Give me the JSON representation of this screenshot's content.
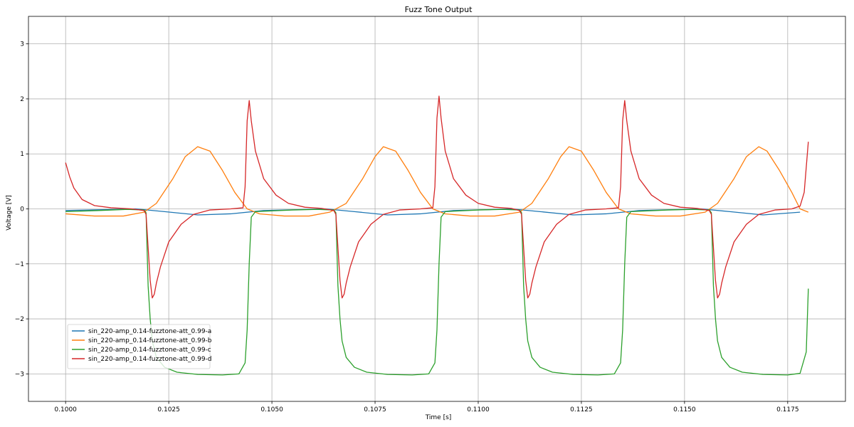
{
  "chart_data": {
    "type": "line",
    "title": "Fuzz Tone Output",
    "xlabel": "Time [s]",
    "ylabel": "Voltage [V]",
    "xlim": [
      0.0991,
      0.1189
    ],
    "ylim": [
      -3.5,
      3.5
    ],
    "grid": true,
    "legend_position": "lower-left",
    "x_ticks": [
      0.1,
      0.1025,
      0.105,
      0.1075,
      0.11,
      0.1125,
      0.115,
      0.1175
    ],
    "x_tick_labels": [
      "0.1000",
      "0.1025",
      "0.1050",
      "0.1075",
      "0.1100",
      "0.1125",
      "0.1150",
      "0.1175"
    ],
    "y_ticks": [
      -3,
      -2,
      -1,
      0,
      1,
      2,
      3
    ],
    "y_tick_labels": [
      "−3",
      "−2",
      "−1",
      "0",
      "1",
      "2",
      "3"
    ],
    "series": [
      {
        "name": "sin_220-amp_0.14-fuzztone-att_0.99-a",
        "color": "#1f77b4",
        "points": [
          [
            0.1,
            -0.03
          ],
          [
            0.1009,
            -0.015
          ],
          [
            0.1017,
            0.0
          ],
          [
            0.1024,
            -0.05
          ],
          [
            0.1032,
            -0.11
          ],
          [
            0.104,
            -0.09
          ],
          [
            0.1048,
            -0.03
          ],
          [
            0.1056,
            -0.015
          ],
          [
            0.1063,
            0.0
          ],
          [
            0.107,
            -0.05
          ],
          [
            0.1078,
            -0.11
          ],
          [
            0.1086,
            -0.09
          ],
          [
            0.1094,
            -0.03
          ],
          [
            0.1102,
            -0.015
          ],
          [
            0.1108,
            0.0
          ],
          [
            0.1115,
            -0.05
          ],
          [
            0.1123,
            -0.11
          ],
          [
            0.1131,
            -0.09
          ],
          [
            0.1139,
            -0.03
          ],
          [
            0.1147,
            -0.015
          ],
          [
            0.1154,
            0.0
          ],
          [
            0.1161,
            -0.05
          ],
          [
            0.1169,
            -0.11
          ],
          [
            0.1178,
            -0.06
          ]
        ]
      },
      {
        "name": "sin_220-amp_0.14-fuzztone-att_0.99-b",
        "color": "#ff7f0e",
        "points": [
          [
            0.1,
            -0.09
          ],
          [
            0.1007,
            -0.13
          ],
          [
            0.1014,
            -0.13
          ],
          [
            0.1019,
            -0.06
          ],
          [
            0.1022,
            0.1
          ],
          [
            0.1026,
            0.55
          ],
          [
            0.1029,
            0.95
          ],
          [
            0.1032,
            1.13
          ],
          [
            0.1035,
            1.05
          ],
          [
            0.1038,
            0.7
          ],
          [
            0.1041,
            0.3
          ],
          [
            0.1044,
            0.0
          ],
          [
            0.1047,
            -0.09
          ],
          [
            0.1053,
            -0.13
          ],
          [
            0.1059,
            -0.13
          ],
          [
            0.1064,
            -0.06
          ],
          [
            0.1068,
            0.1
          ],
          [
            0.1072,
            0.55
          ],
          [
            0.1075,
            0.95
          ],
          [
            0.1077,
            1.13
          ],
          [
            0.108,
            1.05
          ],
          [
            0.1083,
            0.7
          ],
          [
            0.1086,
            0.3
          ],
          [
            0.1089,
            0.0
          ],
          [
            0.1092,
            -0.09
          ],
          [
            0.1098,
            -0.13
          ],
          [
            0.1104,
            -0.13
          ],
          [
            0.111,
            -0.06
          ],
          [
            0.1113,
            0.1
          ],
          [
            0.1117,
            0.55
          ],
          [
            0.112,
            0.95
          ],
          [
            0.1122,
            1.13
          ],
          [
            0.1125,
            1.05
          ],
          [
            0.1128,
            0.7
          ],
          [
            0.1131,
            0.3
          ],
          [
            0.1134,
            0.0
          ],
          [
            0.1137,
            -0.09
          ],
          [
            0.1143,
            -0.13
          ],
          [
            0.1149,
            -0.13
          ],
          [
            0.1155,
            -0.06
          ],
          [
            0.1158,
            0.1
          ],
          [
            0.1162,
            0.55
          ],
          [
            0.1165,
            0.95
          ],
          [
            0.1168,
            1.13
          ],
          [
            0.117,
            1.05
          ],
          [
            0.1173,
            0.7
          ],
          [
            0.1176,
            0.3
          ],
          [
            0.1178,
            0.0
          ],
          [
            0.118,
            -0.06
          ]
        ]
      },
      {
        "name": "sin_220-amp_0.14-fuzztone-att_0.99-c",
        "color": "#2ca02c",
        "points": [
          [
            0.1,
            -0.05
          ],
          [
            0.1008,
            -0.03
          ],
          [
            0.1015,
            -0.01
          ],
          [
            0.1019,
            -0.02
          ],
          [
            0.10195,
            -0.07
          ],
          [
            0.102,
            -1.4
          ],
          [
            0.10205,
            -2.0
          ],
          [
            0.1021,
            -2.4
          ],
          [
            0.1022,
            -2.7
          ],
          [
            0.1024,
            -2.88
          ],
          [
            0.1027,
            -2.97
          ],
          [
            0.1032,
            -3.01
          ],
          [
            0.1038,
            -3.02
          ],
          [
            0.1042,
            -3.0
          ],
          [
            0.10435,
            -2.8
          ],
          [
            0.1044,
            -2.2
          ],
          [
            0.10445,
            -1.0
          ],
          [
            0.1045,
            -0.15
          ],
          [
            0.1046,
            -0.05
          ],
          [
            0.1055,
            -0.02
          ],
          [
            0.1061,
            -0.01
          ],
          [
            0.1065,
            -0.02
          ],
          [
            0.10655,
            -0.07
          ],
          [
            0.1066,
            -1.4
          ],
          [
            0.10665,
            -2.0
          ],
          [
            0.1067,
            -2.4
          ],
          [
            0.1068,
            -2.7
          ],
          [
            0.107,
            -2.88
          ],
          [
            0.1073,
            -2.97
          ],
          [
            0.1078,
            -3.01
          ],
          [
            0.1084,
            -3.02
          ],
          [
            0.1088,
            -3.0
          ],
          [
            0.10895,
            -2.8
          ],
          [
            0.109,
            -2.2
          ],
          [
            0.10905,
            -1.0
          ],
          [
            0.1091,
            -0.15
          ],
          [
            0.1092,
            -0.05
          ],
          [
            0.11,
            -0.02
          ],
          [
            0.1106,
            -0.01
          ],
          [
            0.111,
            -0.02
          ],
          [
            0.11105,
            -0.07
          ],
          [
            0.1111,
            -1.4
          ],
          [
            0.11115,
            -2.0
          ],
          [
            0.1112,
            -2.4
          ],
          [
            0.1113,
            -2.7
          ],
          [
            0.1115,
            -2.88
          ],
          [
            0.1118,
            -2.97
          ],
          [
            0.1123,
            -3.01
          ],
          [
            0.1129,
            -3.02
          ],
          [
            0.1133,
            -3.0
          ],
          [
            0.11345,
            -2.8
          ],
          [
            0.1135,
            -2.2
          ],
          [
            0.11355,
            -1.0
          ],
          [
            0.1136,
            -0.15
          ],
          [
            0.1137,
            -0.05
          ],
          [
            0.1146,
            -0.02
          ],
          [
            0.1152,
            -0.01
          ],
          [
            0.1156,
            -0.02
          ],
          [
            0.11565,
            -0.07
          ],
          [
            0.1157,
            -1.4
          ],
          [
            0.11575,
            -2.0
          ],
          [
            0.1158,
            -2.4
          ],
          [
            0.1159,
            -2.7
          ],
          [
            0.1161,
            -2.88
          ],
          [
            0.1164,
            -2.97
          ],
          [
            0.1169,
            -3.01
          ],
          [
            0.1175,
            -3.02
          ],
          [
            0.1178,
            -2.99
          ],
          [
            0.11795,
            -2.6
          ],
          [
            0.118,
            -1.45
          ]
        ]
      },
      {
        "name": "sin_220-amp_0.14-fuzztone-att_0.99-d",
        "color": "#d62728",
        "points": [
          [
            0.1,
            0.84
          ],
          [
            0.1001,
            0.58
          ],
          [
            0.1002,
            0.38
          ],
          [
            0.1004,
            0.17
          ],
          [
            0.1007,
            0.06
          ],
          [
            0.1011,
            0.02
          ],
          [
            0.1016,
            0.0
          ],
          [
            0.1019,
            -0.03
          ],
          [
            0.10195,
            -0.1
          ],
          [
            0.102,
            -0.7
          ],
          [
            0.10205,
            -1.3
          ],
          [
            0.1021,
            -1.62
          ],
          [
            0.10215,
            -1.55
          ],
          [
            0.1022,
            -1.35
          ],
          [
            0.1023,
            -1.05
          ],
          [
            0.1025,
            -0.6
          ],
          [
            0.1028,
            -0.28
          ],
          [
            0.1031,
            -0.1
          ],
          [
            0.1035,
            -0.02
          ],
          [
            0.104,
            0.0
          ],
          [
            0.1043,
            0.02
          ],
          [
            0.10435,
            0.4
          ],
          [
            0.1044,
            1.6
          ],
          [
            0.10445,
            1.97
          ],
          [
            0.1045,
            1.6
          ],
          [
            0.1046,
            1.05
          ],
          [
            0.1048,
            0.55
          ],
          [
            0.1051,
            0.25
          ],
          [
            0.1054,
            0.1
          ],
          [
            0.1058,
            0.03
          ],
          [
            0.1062,
            0.01
          ],
          [
            0.1065,
            -0.03
          ],
          [
            0.10655,
            -0.1
          ],
          [
            0.1066,
            -0.7
          ],
          [
            0.10665,
            -1.3
          ],
          [
            0.1067,
            -1.62
          ],
          [
            0.10675,
            -1.55
          ],
          [
            0.1068,
            -1.35
          ],
          [
            0.1069,
            -1.05
          ],
          [
            0.1071,
            -0.6
          ],
          [
            0.1074,
            -0.28
          ],
          [
            0.1077,
            -0.1
          ],
          [
            0.1081,
            -0.02
          ],
          [
            0.1086,
            0.0
          ],
          [
            0.1089,
            0.02
          ],
          [
            0.10895,
            0.4
          ],
          [
            0.109,
            1.65
          ],
          [
            0.10905,
            2.05
          ],
          [
            0.1091,
            1.65
          ],
          [
            0.1092,
            1.05
          ],
          [
            0.1094,
            0.55
          ],
          [
            0.1097,
            0.25
          ],
          [
            0.11,
            0.1
          ],
          [
            0.1104,
            0.03
          ],
          [
            0.1108,
            0.01
          ],
          [
            0.111,
            -0.03
          ],
          [
            0.11105,
            -0.1
          ],
          [
            0.1111,
            -0.7
          ],
          [
            0.11115,
            -1.3
          ],
          [
            0.1112,
            -1.62
          ],
          [
            0.11125,
            -1.55
          ],
          [
            0.1113,
            -1.35
          ],
          [
            0.1114,
            -1.05
          ],
          [
            0.1116,
            -0.6
          ],
          [
            0.1119,
            -0.28
          ],
          [
            0.1122,
            -0.1
          ],
          [
            0.1126,
            -0.02
          ],
          [
            0.1131,
            0.0
          ],
          [
            0.1134,
            0.02
          ],
          [
            0.11345,
            0.4
          ],
          [
            0.1135,
            1.6
          ],
          [
            0.11355,
            1.97
          ],
          [
            0.1136,
            1.6
          ],
          [
            0.1137,
            1.05
          ],
          [
            0.1139,
            0.55
          ],
          [
            0.1142,
            0.25
          ],
          [
            0.1145,
            0.1
          ],
          [
            0.1149,
            0.03
          ],
          [
            0.1153,
            0.01
          ],
          [
            0.1156,
            -0.03
          ],
          [
            0.11565,
            -0.1
          ],
          [
            0.1157,
            -0.7
          ],
          [
            0.11575,
            -1.3
          ],
          [
            0.1158,
            -1.62
          ],
          [
            0.11585,
            -1.55
          ],
          [
            0.1159,
            -1.35
          ],
          [
            0.116,
            -1.05
          ],
          [
            0.1162,
            -0.6
          ],
          [
            0.1165,
            -0.28
          ],
          [
            0.1168,
            -0.1
          ],
          [
            0.1172,
            -0.02
          ],
          [
            0.1176,
            0.0
          ],
          [
            0.1178,
            0.05
          ],
          [
            0.1179,
            0.3
          ],
          [
            0.118,
            1.22
          ]
        ]
      }
    ]
  }
}
